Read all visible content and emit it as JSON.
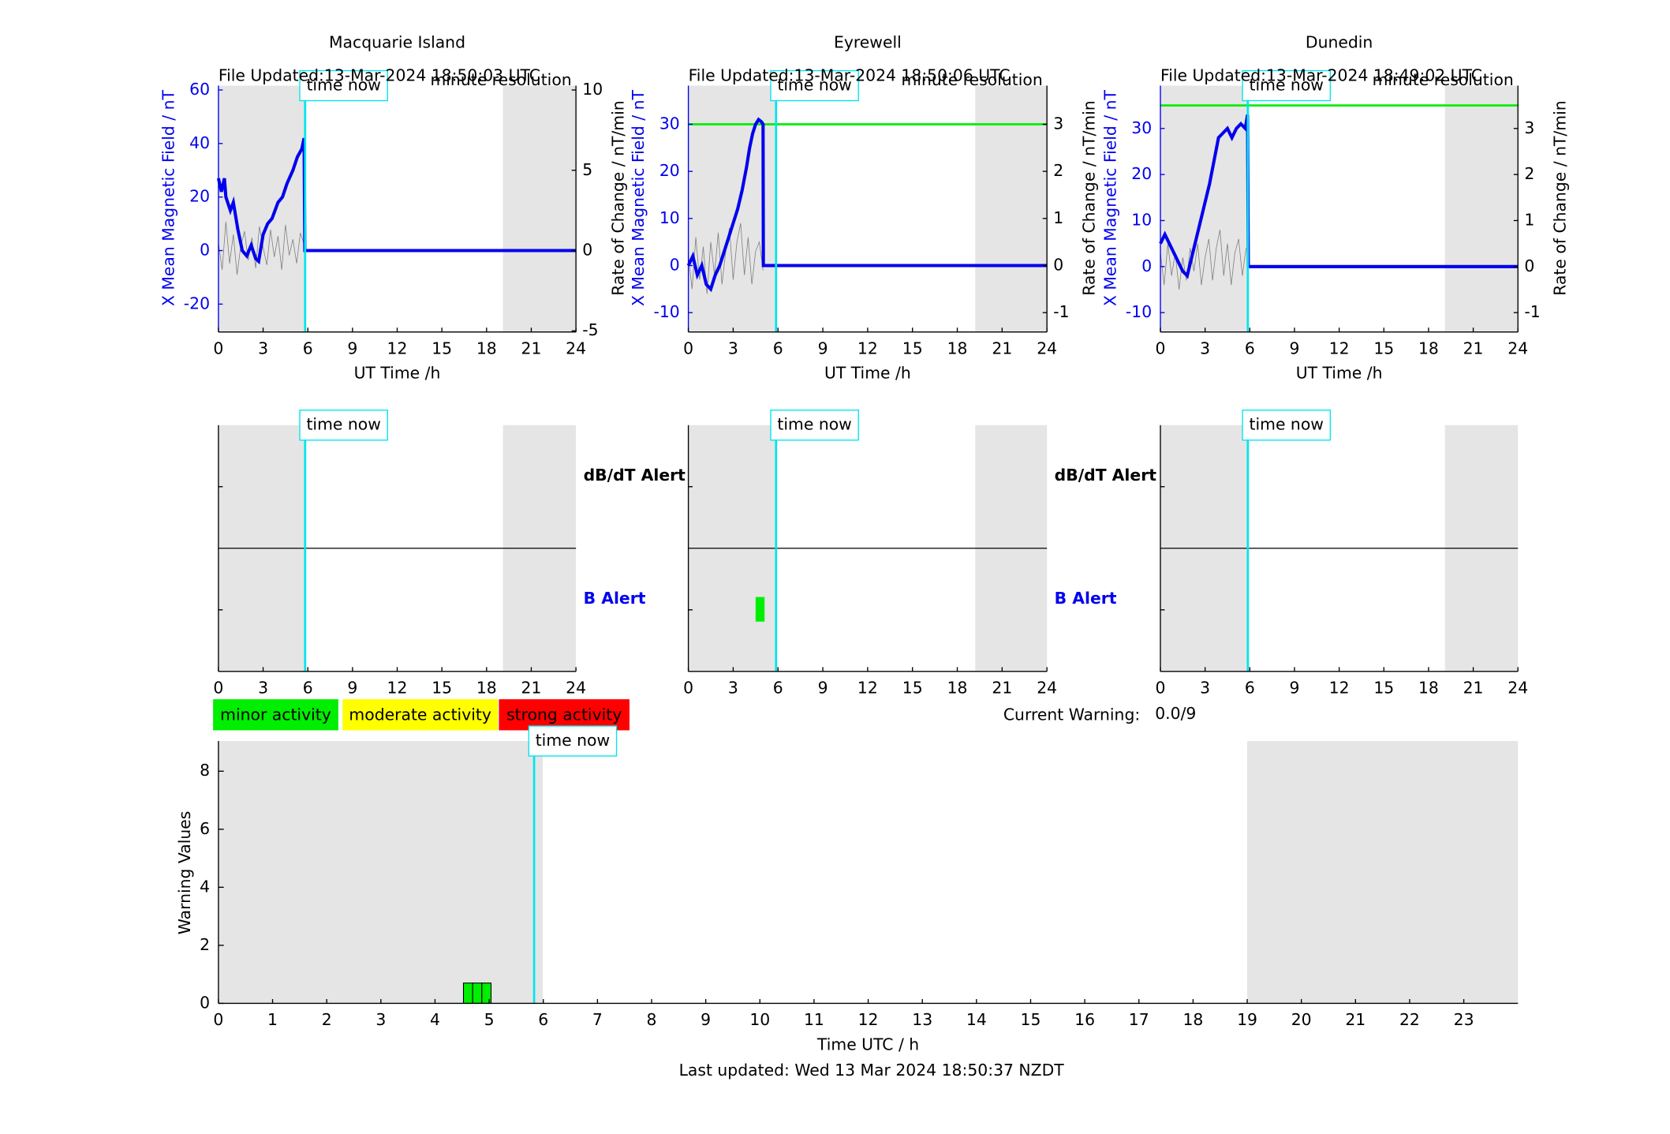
{
  "chart_data": [
    {
      "type": "line",
      "title": "Macquarie Island",
      "file_updated": "File Updated:13-Mar-2024 18:50:03 UTC",
      "resolution": "minute resolution",
      "xlabel": "UT Time /h",
      "ylabel": "X Mean Magnetic Field / nT",
      "y2label": "Rate of Change / nT/min",
      "xlim": [
        0,
        24
      ],
      "xticks": [
        0,
        3,
        6,
        9,
        12,
        15,
        18,
        21,
        24
      ],
      "ylim": [
        -30.4,
        61.6
      ],
      "yticks": [
        -20,
        0,
        20,
        40,
        60
      ],
      "y2lim": [
        -5.07,
        10.27
      ],
      "y2ticks": [
        -5,
        0,
        5,
        10
      ],
      "shaded": [
        [
          0,
          5.82
        ],
        [
          19.1,
          24
        ]
      ],
      "time_now": 5.82,
      "time_now_label": "time now",
      "series": [
        {
          "color": "#808080",
          "axis": "y2",
          "x": [
            0,
            0.25,
            0.5,
            0.75,
            1,
            1.25,
            1.5,
            1.75,
            2,
            2.25,
            2.5,
            2.75,
            3,
            3.25,
            3.5,
            3.75,
            4,
            4.25,
            4.5,
            4.75,
            5,
            5.25,
            5.5,
            5.75,
            5.8,
            24
          ],
          "values": [
            0.5,
            -1.2,
            1.8,
            -0.8,
            1,
            -1.5,
            0.3,
            1.2,
            -0.6,
            0.8,
            -1.1,
            1.5,
            0.2,
            -0.9,
            1.3,
            -0.4,
            0.9,
            -1.2,
            1.6,
            -0.3,
            0.7,
            -0.8,
            1.1,
            0.4,
            0,
            0
          ]
        },
        {
          "color": "#0000ee",
          "x": [
            0,
            0.2,
            0.4,
            0.5,
            0.8,
            1,
            1.3,
            1.6,
            1.9,
            2.2,
            2.5,
            2.7,
            3,
            3.3,
            3.6,
            4,
            4.3,
            4.6,
            5,
            5.3,
            5.6,
            5.75,
            5.8,
            24
          ],
          "values": [
            27,
            22,
            27,
            20,
            15,
            18,
            8,
            0,
            -2,
            2,
            -3,
            -4,
            6,
            10,
            12,
            18,
            20,
            25,
            30,
            35,
            38,
            42,
            0,
            0
          ]
        }
      ]
    },
    {
      "type": "line",
      "title": "Eyrewell",
      "file_updated": "File Updated:13-Mar-2024 18:50:06 UTC",
      "resolution": "minute resolution",
      "ylabel": "X Mean Magnetic Field / nT",
      "y2label": "Rate of Change / nT/min",
      "xlabel": "UT Time /h",
      "xlim": [
        0,
        24
      ],
      "xticks": [
        0,
        3,
        6,
        9,
        12,
        15,
        18,
        21,
        24
      ],
      "ylim": [
        -14.1,
        38.2
      ],
      "yticks": [
        -10,
        0,
        10,
        20,
        30
      ],
      "y2lim": [
        -1.41,
        3.82
      ],
      "y2ticks": [
        -1,
        0,
        1,
        2,
        3
      ],
      "shaded": [
        [
          0,
          5.82
        ],
        [
          19.2,
          24
        ]
      ],
      "time_now": 5.87,
      "time_now_label": "time now",
      "series": [
        {
          "color": "#00ee00",
          "x": [
            0,
            24
          ],
          "values": [
            30,
            30
          ]
        },
        {
          "color": "#808080",
          "axis": "y2",
          "x": [
            0,
            0.25,
            0.5,
            0.75,
            1,
            1.25,
            1.5,
            1.75,
            2,
            2.25,
            2.5,
            2.75,
            3,
            3.25,
            3.5,
            3.75,
            4,
            4.25,
            4.5,
            4.75,
            5
          ],
          "values": [
            0.2,
            -0.5,
            0.6,
            -0.3,
            0.4,
            -0.6,
            0.5,
            -0.2,
            0.7,
            -0.4,
            0.3,
            0.8,
            -0.3,
            0.5,
            0.9,
            -0.2,
            0.6,
            -0.4,
            0.3,
            0.5,
            -0.1
          ]
        },
        {
          "color": "#0000ee",
          "x": [
            0,
            0.3,
            0.6,
            0.9,
            1.2,
            1.5,
            1.8,
            2.1,
            2.4,
            2.7,
            3,
            3.3,
            3.6,
            3.9,
            4.1,
            4.3,
            4.5,
            4.7,
            4.9,
            5,
            5.02,
            24
          ],
          "values": [
            0,
            2,
            -2,
            0,
            -4,
            -5,
            -2,
            0,
            3,
            6,
            9,
            12,
            16,
            21,
            25,
            28,
            30,
            31,
            30.5,
            30,
            0,
            0
          ]
        }
      ]
    },
    {
      "type": "line",
      "title": "Dunedin",
      "file_updated": "File Updated:13-Mar-2024 18:49:02 UTC",
      "resolution": "minute resolution",
      "ylabel": "X Mean Magnetic Field / nT",
      "y2label": "Rate of Change / nT/min",
      "xlabel": "UT Time /h",
      "xlim": [
        0,
        24
      ],
      "xticks": [
        0,
        3,
        6,
        9,
        12,
        15,
        18,
        21,
        24
      ],
      "ylim": [
        -14.2,
        39.3
      ],
      "yticks": [
        -10,
        0,
        10,
        20,
        30
      ],
      "y2lim": [
        -1.42,
        3.93
      ],
      "y2ticks": [
        -1,
        0,
        1,
        2,
        3
      ],
      "shaded": [
        [
          0,
          5.82
        ],
        [
          19.1,
          24
        ]
      ],
      "time_now": 5.87,
      "time_now_label": "time now",
      "series": [
        {
          "color": "#00ee00",
          "x": [
            0,
            24
          ],
          "values": [
            35,
            35
          ]
        },
        {
          "color": "#808080",
          "axis": "y2",
          "x": [
            0,
            0.25,
            0.5,
            0.75,
            1,
            1.25,
            1.5,
            1.75,
            2,
            2.25,
            2.5,
            2.75,
            3,
            3.25,
            3.5,
            3.75,
            4,
            4.25,
            4.5,
            4.75,
            5,
            5.25,
            5.5,
            5.75
          ],
          "values": [
            0.3,
            -0.4,
            0.5,
            -0.2,
            0.3,
            -0.5,
            0.2,
            -0.3,
            0.4,
            -0.1,
            0.5,
            -0.4,
            0.2,
            0.6,
            -0.3,
            0.4,
            0.8,
            -0.2,
            0.5,
            -0.4,
            0.3,
            0.6,
            -0.2,
            0.4
          ]
        },
        {
          "color": "#0000ee",
          "x": [
            0,
            0.3,
            0.6,
            0.9,
            1.2,
            1.5,
            1.8,
            2.1,
            2.4,
            2.7,
            3,
            3.3,
            3.6,
            3.9,
            4.2,
            4.5,
            4.8,
            5.1,
            5.4,
            5.7,
            5.85,
            5.9,
            24
          ],
          "values": [
            5,
            7,
            5,
            3,
            1,
            -1,
            -2,
            2,
            6,
            10,
            14,
            18,
            23,
            28,
            29,
            30,
            28,
            30,
            31,
            30,
            33,
            0,
            0
          ]
        }
      ]
    },
    {
      "type": "alert",
      "xlim": [
        0,
        24
      ],
      "xticks": [
        0,
        3,
        6,
        9,
        12,
        15,
        18,
        21,
        24
      ],
      "shaded": [
        [
          0,
          5.82
        ],
        [
          19.1,
          24
        ]
      ],
      "time_now": 5.82,
      "time_now_label": "time now",
      "row_labels": [
        "dB/dT Alert",
        "B Alert"
      ]
    },
    {
      "type": "alert",
      "xlim": [
        0,
        24
      ],
      "xticks": [
        0,
        3,
        6,
        9,
        12,
        15,
        18,
        21,
        24
      ],
      "shaded": [
        [
          0,
          5.82
        ],
        [
          19.2,
          24
        ]
      ],
      "time_now": 5.87,
      "time_now_label": "time now",
      "row_labels": [
        "dB/dT Alert",
        "B Alert"
      ],
      "b_alerts": [
        {
          "start": 4.5,
          "end": 5.1,
          "color": "#00ee00"
        }
      ]
    },
    {
      "type": "alert",
      "xlim": [
        0,
        24
      ],
      "xticks": [
        0,
        3,
        6,
        9,
        12,
        15,
        18,
        21,
        24
      ],
      "shaded": [
        [
          0,
          5.82
        ],
        [
          19.1,
          24
        ]
      ],
      "time_now": 5.87,
      "time_now_label": "time now"
    },
    {
      "type": "bar",
      "xlabel": "Time UTC / h",
      "ylabel": "Warning Values",
      "xlim": [
        0,
        24
      ],
      "xticks": [
        0,
        1,
        2,
        3,
        4,
        5,
        6,
        7,
        8,
        9,
        10,
        11,
        12,
        13,
        14,
        15,
        16,
        17,
        18,
        19,
        20,
        21,
        22,
        23
      ],
      "ylim": [
        0,
        9.04
      ],
      "yticks": [
        0,
        2,
        4,
        6,
        8
      ],
      "shaded": [
        [
          0,
          5.99
        ],
        [
          19,
          24
        ]
      ],
      "time_now": 5.83,
      "time_now_label": "time now",
      "bar_color": "#00ee00",
      "bar_width": 0.17,
      "x": [
        4.61,
        4.78,
        4.95
      ],
      "values": [
        0.7,
        0.7,
        0.7
      ],
      "legend": [
        {
          "label": "minor activity",
          "color": "#00ee00"
        },
        {
          "label": "moderate activity",
          "color": "#ffff00"
        },
        {
          "label": "strong activity",
          "color": "#ff0000"
        }
      ],
      "current_warning_label": "Current Warning:",
      "current_warning": "0.0/9",
      "footer": "Last updated: Wed 13 Mar 2024 18:50:37 NZDT"
    }
  ]
}
